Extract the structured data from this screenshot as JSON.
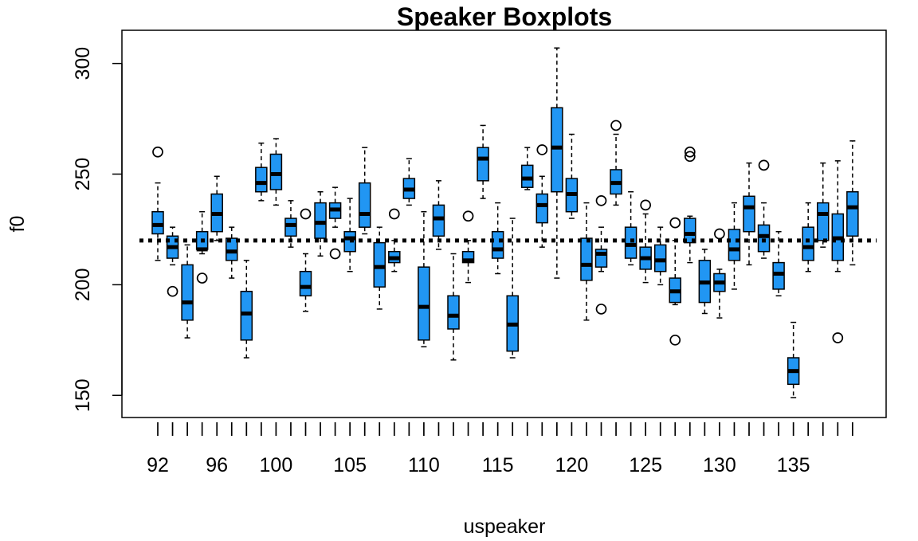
{
  "chart_data": {
    "type": "boxplot",
    "title": "Speaker Boxplots",
    "xlabel": "uspeaker",
    "ylabel": "f0",
    "ylim": [
      140,
      315
    ],
    "yticks": [
      150,
      200,
      250,
      300
    ],
    "xtick_labels": [
      "92",
      "96",
      "100",
      "105",
      "110",
      "115",
      "120",
      "125",
      "130",
      "135"
    ],
    "reference_line": 220,
    "box_color": "#2196F3",
    "categories": [
      "92",
      "93",
      "94",
      "95",
      "96",
      "97",
      "98",
      "99",
      "100",
      "101",
      "102",
      "103",
      "104",
      "105",
      "106",
      "107",
      "108",
      "109",
      "110",
      "111",
      "112",
      "113",
      "114",
      "115",
      "116",
      "117",
      "118",
      "119",
      "120",
      "121",
      "122",
      "123",
      "124",
      "125",
      "126",
      "127",
      "128",
      "129",
      "130",
      "131",
      "132",
      "133",
      "134",
      "135",
      "136",
      "137",
      "138",
      "139"
    ],
    "boxes": [
      {
        "min": 211,
        "q1": 223,
        "median": 227,
        "q3": 233,
        "max": 246,
        "outliers": [
          260
        ]
      },
      {
        "min": 209,
        "q1": 212,
        "median": 217,
        "q3": 222,
        "max": 226,
        "outliers": [
          197
        ]
      },
      {
        "min": 176,
        "q1": 184,
        "median": 192,
        "q3": 209,
        "max": 218,
        "outliers": []
      },
      {
        "min": 214,
        "q1": 216,
        "median": 216,
        "q3": 224,
        "max": 233,
        "outliers": [
          203
        ]
      },
      {
        "min": 220,
        "q1": 224,
        "median": 232,
        "q3": 241,
        "max": 249,
        "outliers": []
      },
      {
        "min": 203,
        "q1": 211,
        "median": 215,
        "q3": 221,
        "max": 226,
        "outliers": []
      },
      {
        "min": 167,
        "q1": 175,
        "median": 187,
        "q3": 197,
        "max": 211,
        "outliers": []
      },
      {
        "min": 238,
        "q1": 242,
        "median": 246,
        "q3": 253,
        "max": 264,
        "outliers": []
      },
      {
        "min": 236,
        "q1": 243,
        "median": 250,
        "q3": 259,
        "max": 266,
        "outliers": []
      },
      {
        "min": 217,
        "q1": 222,
        "median": 227,
        "q3": 230,
        "max": 238,
        "outliers": []
      },
      {
        "min": 188,
        "q1": 195,
        "median": 199,
        "q3": 206,
        "max": 214,
        "outliers": [
          232
        ]
      },
      {
        "min": 213,
        "q1": 221,
        "median": 228,
        "q3": 237,
        "max": 242,
        "outliers": []
      },
      {
        "min": 226,
        "q1": 230,
        "median": 234,
        "q3": 237,
        "max": 244,
        "outliers": [
          214
        ]
      },
      {
        "min": 206,
        "q1": 215,
        "median": 221,
        "q3": 224,
        "max": 239,
        "outliers": []
      },
      {
        "min": 223,
        "q1": 226,
        "median": 232,
        "q3": 246,
        "max": 262,
        "outliers": []
      },
      {
        "min": 189,
        "q1": 199,
        "median": 208,
        "q3": 219,
        "max": 226,
        "outliers": []
      },
      {
        "min": 206,
        "q1": 210,
        "median": 212,
        "q3": 215,
        "max": 220,
        "outliers": [
          232
        ]
      },
      {
        "min": 236,
        "q1": 239,
        "median": 243,
        "q3": 248,
        "max": 257,
        "outliers": []
      },
      {
        "min": 172,
        "q1": 175,
        "median": 190,
        "q3": 208,
        "max": 233,
        "outliers": []
      },
      {
        "min": 216,
        "q1": 222,
        "median": 230,
        "q3": 236,
        "max": 247,
        "outliers": []
      },
      {
        "min": 166,
        "q1": 180,
        "median": 186,
        "q3": 195,
        "max": 214,
        "outliers": []
      },
      {
        "min": 201,
        "q1": 210,
        "median": 211,
        "q3": 215,
        "max": 220,
        "outliers": [
          231
        ]
      },
      {
        "min": 239,
        "q1": 247,
        "median": 257,
        "q3": 262,
        "max": 272,
        "outliers": []
      },
      {
        "min": 205,
        "q1": 212,
        "median": 216,
        "q3": 224,
        "max": 237,
        "outliers": []
      },
      {
        "min": 167,
        "q1": 170,
        "median": 182,
        "q3": 195,
        "max": 230,
        "outliers": []
      },
      {
        "min": 243,
        "q1": 244,
        "median": 248,
        "q3": 254,
        "max": 262,
        "outliers": []
      },
      {
        "min": 217,
        "q1": 228,
        "median": 236,
        "q3": 241,
        "max": 249,
        "outliers": [
          261
        ]
      },
      {
        "min": 203,
        "q1": 242,
        "median": 262,
        "q3": 280,
        "max": 307,
        "outliers": []
      },
      {
        "min": 230,
        "q1": 233,
        "median": 241,
        "q3": 248,
        "max": 268,
        "outliers": []
      },
      {
        "min": 184,
        "q1": 202,
        "median": 209,
        "q3": 221,
        "max": 237,
        "outliers": []
      },
      {
        "min": 206,
        "q1": 208,
        "median": 214,
        "q3": 216,
        "max": 226,
        "outliers": [
          189,
          238
        ]
      },
      {
        "min": 236,
        "q1": 241,
        "median": 246,
        "q3": 252,
        "max": 268,
        "outliers": [
          272
        ]
      },
      {
        "min": 209,
        "q1": 212,
        "median": 218,
        "q3": 226,
        "max": 242,
        "outliers": []
      },
      {
        "min": 201,
        "q1": 207,
        "median": 212,
        "q3": 217,
        "max": 232,
        "outliers": [
          236
        ]
      },
      {
        "min": 200,
        "q1": 206,
        "median": 211,
        "q3": 218,
        "max": 226,
        "outliers": []
      },
      {
        "min": 191,
        "q1": 192,
        "median": 197,
        "q3": 203,
        "max": 220,
        "outliers": [
          175,
          228
        ]
      },
      {
        "min": 210,
        "q1": 219,
        "median": 223,
        "q3": 230,
        "max": 231,
        "outliers": [
          258,
          260
        ]
      },
      {
        "min": 187,
        "q1": 192,
        "median": 201,
        "q3": 211,
        "max": 216,
        "outliers": []
      },
      {
        "min": 185,
        "q1": 197,
        "median": 201,
        "q3": 205,
        "max": 207,
        "outliers": [
          223
        ]
      },
      {
        "min": 198,
        "q1": 211,
        "median": 216,
        "q3": 225,
        "max": 237,
        "outliers": []
      },
      {
        "min": 209,
        "q1": 224,
        "median": 235,
        "q3": 240,
        "max": 255,
        "outliers": []
      },
      {
        "min": 212,
        "q1": 215,
        "median": 222,
        "q3": 227,
        "max": 237,
        "outliers": [
          254
        ]
      },
      {
        "min": 195,
        "q1": 198,
        "median": 205,
        "q3": 210,
        "max": 224,
        "outliers": []
      },
      {
        "min": 149,
        "q1": 155,
        "median": 161,
        "q3": 167,
        "max": 183,
        "outliers": []
      },
      {
        "min": 206,
        "q1": 211,
        "median": 217,
        "q3": 226,
        "max": 237,
        "outliers": []
      },
      {
        "min": 217,
        "q1": 220,
        "median": 232,
        "q3": 237,
        "max": 255,
        "outliers": []
      },
      {
        "min": 206,
        "q1": 211,
        "median": 221,
        "q3": 232,
        "max": 256,
        "outliers": [
          176
        ]
      },
      {
        "min": 209,
        "q1": 222,
        "median": 235,
        "q3": 242,
        "max": 265,
        "outliers": []
      }
    ]
  }
}
